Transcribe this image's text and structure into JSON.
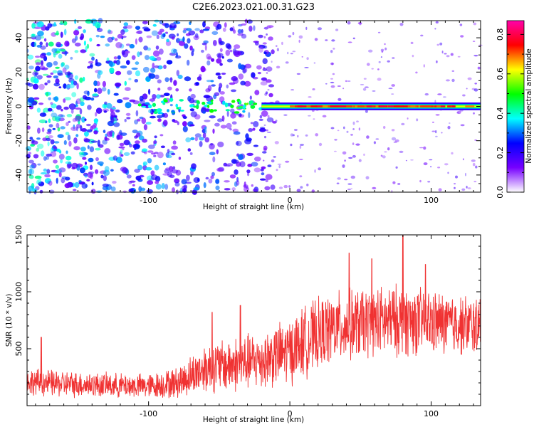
{
  "chart_data": [
    {
      "type": "heatmap",
      "title": "C2E6.2023.021.00.31.G23",
      "xlabel": "Height of straight line (km)",
      "ylabel": "Frequency (Hz)",
      "xlim": [
        -186,
        135
      ],
      "ylim": [
        -50,
        50
      ],
      "x_ticks": [
        -100,
        0,
        100
      ],
      "y_ticks": [
        -40,
        -20,
        0,
        20,
        40
      ],
      "grid": false,
      "colorbar": {
        "label": "Normalized spectral amplitude",
        "range": [
          0.0,
          0.87
        ],
        "ticks": [
          0.0,
          0.2,
          0.4,
          0.6,
          0.8
        ],
        "colors": [
          "#ffffff",
          "#7700ff",
          "#0000ff",
          "#00ffff",
          "#00ff00",
          "#ffff00",
          "#ff0000",
          "#ff00aa"
        ]
      },
      "features": {
        "carrier_line": {
          "frequency": 0,
          "x_start": -20,
          "x_end": 135,
          "amplitude": 0.75
        },
        "noise_region_x_end": -20,
        "noise_amplitude_range": [
          0.02,
          0.25
        ]
      }
    },
    {
      "type": "line",
      "xlabel": "Height of straight line (km)",
      "ylabel": "SNR (10 * v/v)",
      "xlim": [
        -186,
        135
      ],
      "ylim": [
        0,
        1500
      ],
      "x_ticks": [
        -100,
        0,
        100
      ],
      "y_ticks": [
        500,
        1000,
        1500
      ],
      "series": [
        {
          "color": "#f03232",
          "envelope": {
            "x": [
              -186,
              -160,
              -130,
              -100,
              -80,
              -60,
              -40,
              -20,
              0,
              10,
              30,
              50,
              80,
              110,
              135
            ],
            "mean": [
              210,
              190,
              180,
              170,
              200,
              330,
              360,
              400,
              480,
              560,
              680,
              720,
              750,
              720,
              700
            ],
            "spread": [
              120,
              120,
              110,
              110,
              140,
              220,
              250,
              260,
              300,
              320,
              320,
              320,
              320,
              280,
              260
            ]
          },
          "peaks": [
            {
              "x": -176,
              "value": 600
            },
            {
              "x": -55,
              "value": 820
            },
            {
              "x": -35,
              "value": 880
            },
            {
              "x": 42,
              "value": 1340
            },
            {
              "x": 58,
              "value": 1290
            },
            {
              "x": 80,
              "value": 1500
            },
            {
              "x": 96,
              "value": 1240
            }
          ]
        }
      ]
    }
  ]
}
